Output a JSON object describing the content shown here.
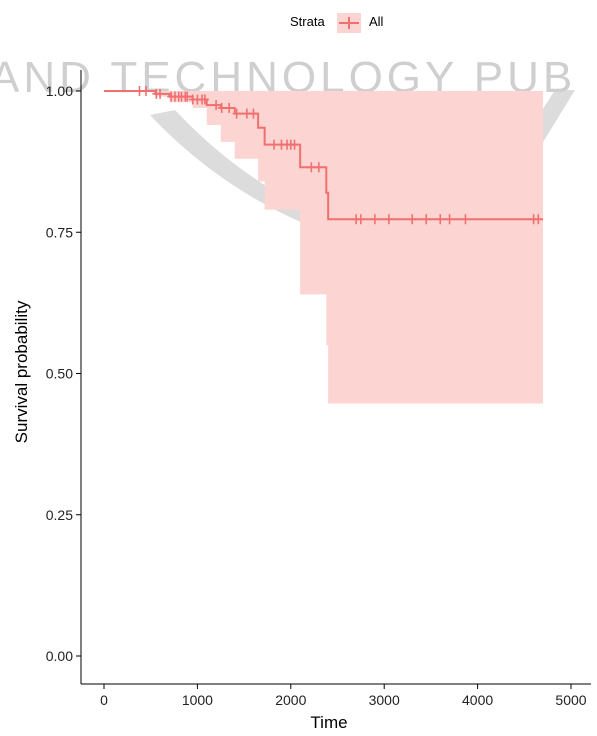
{
  "watermark": {
    "text": "AND TECHNOLOGY PUB",
    "logo_name": "publisher-watermark-logo"
  },
  "colors": {
    "line": "#f07070",
    "band": "#fcd4d2",
    "axis": "#000000"
  },
  "legend": {
    "title": "Strata",
    "label": "All",
    "position": "top"
  },
  "chart_data": {
    "type": "line",
    "title": "",
    "xlabel": "Time",
    "ylabel": "Survival probability",
    "xlim": [
      0,
      5000
    ],
    "ylim": [
      0,
      1
    ],
    "x_ticks": [
      0,
      1000,
      2000,
      3000,
      4000,
      5000
    ],
    "x_tick_labels": [
      "0",
      "1000",
      "2000",
      "3000",
      "4000",
      "5000"
    ],
    "y_ticks": [
      0,
      0.25,
      0.5,
      0.75,
      1
    ],
    "y_tick_labels": [
      "0.00",
      "0.25",
      "0.50",
      "0.75",
      "1.00"
    ],
    "grid": false,
    "series": [
      {
        "name": "All",
        "step": true,
        "x": [
          0,
          550,
          700,
          950,
          1100,
          1250,
          1400,
          1650,
          1720,
          2100,
          2380,
          2400,
          4700
        ],
        "y": [
          1.0,
          0.995,
          0.99,
          0.985,
          0.975,
          0.97,
          0.96,
          0.935,
          0.905,
          0.865,
          0.82,
          0.773,
          0.773
        ],
        "lower": [
          1.0,
          0.99,
          0.98,
          0.97,
          0.94,
          0.91,
          0.88,
          0.84,
          0.79,
          0.64,
          0.55,
          0.447,
          0.447
        ],
        "upper": [
          1.0,
          1.0,
          1.0,
          1.0,
          1.0,
          1.0,
          1.0,
          1.0,
          1.0,
          1.0,
          1.0,
          1.0,
          1.0
        ],
        "censored_x": [
          380,
          450,
          560,
          600,
          720,
          760,
          800,
          830,
          870,
          890,
          950,
          1000,
          1050,
          1080,
          1200,
          1260,
          1340,
          1420,
          1530,
          1600,
          1820,
          1900,
          1960,
          2000,
          2040,
          2220,
          2300,
          2700,
          2750,
          2900,
          3050,
          3300,
          3450,
          3600,
          3700,
          3870,
          4600,
          4650
        ]
      }
    ]
  }
}
